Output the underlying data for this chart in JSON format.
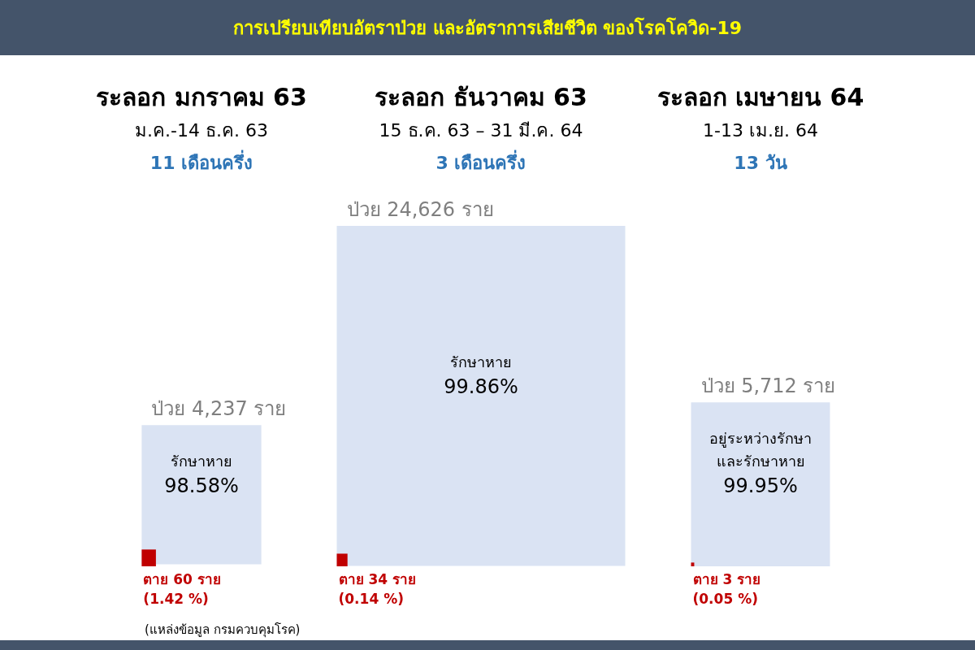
{
  "chart_data": {
    "type": "other",
    "title": "การเปรียบเทียบอัตราป่วย และอัตราการเสียชีวิต ของโรคโควิด-19",
    "categories": [
      "ระลอก มกราคม 63\nม.ค.-14 ธ.ค. 63\n11 เดือนครึ่ง",
      "ระลอก ธันวาคม 63\n15 ธ.ค. 63 – 31 มี.ค. 64\n3 เดือนครึ่ง",
      "ระลอก เมษายน 64\n1-13 เม.ย. 64\n13 วัน"
    ],
    "series": [
      {
        "values": [
          4237,
          24626,
          5712
        ],
        "value_labels": [
          "ป่วย 4,237 ราย",
          "ป่วย 24,626 ราย",
          "ป่วย 5,712 ราย"
        ]
      },
      {
        "color": "#dae3f3",
        "values": [
          98.58,
          99.86,
          99.95
        ],
        "value_labels": [
          "รักษาหาย\n98.58%",
          "รักษาหาย\n99.86%",
          "อยู่ระหว่างรักษา\nและรักษาหาย\n99.95%"
        ]
      },
      {
        "color": "#c00000",
        "values": [
          60,
          34,
          3
        ],
        "value_labels": [
          "ตาย 60 ราย\n(1.42 %)",
          "ตาย 34 ราย\n(0.14 %)",
          "ตาย 3 ราย\n(0.05 %)"
        ]
      }
    ],
    "annotations": [
      "(แหล่งข้อมูล กรมควบคุมโรค)"
    ]
  }
}
